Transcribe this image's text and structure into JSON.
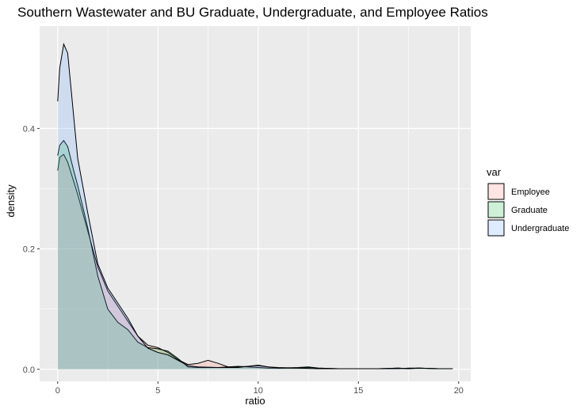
{
  "chart_data": {
    "type": "area",
    "title": "Southern Wastewater and BU Graduate, Undergraduate, and Employee Ratios",
    "xlabel": "ratio",
    "ylabel": "density",
    "xlim": [
      -0.9,
      20.6
    ],
    "ylim": [
      -0.02,
      0.57
    ],
    "x_ticks": [
      0,
      5,
      10,
      15,
      20
    ],
    "x_tick_labels": [
      "0",
      "5",
      "10",
      "15",
      "20"
    ],
    "y_ticks": [
      0.0,
      0.2,
      0.4
    ],
    "y_tick_labels": [
      "0.0",
      "0.2",
      "0.4"
    ],
    "grid": true,
    "legend": {
      "title": "var",
      "position": "right"
    },
    "series": [
      {
        "name": "Employee",
        "fill": "#f8766d",
        "points": [
          [
            0,
            0.33
          ],
          [
            0.1,
            0.352
          ],
          [
            0.3,
            0.357
          ],
          [
            0.5,
            0.344
          ],
          [
            0.8,
            0.312
          ],
          [
            1,
            0.29
          ],
          [
            1.5,
            0.23
          ],
          [
            2,
            0.17
          ],
          [
            2.5,
            0.13
          ],
          [
            3,
            0.105
          ],
          [
            3.5,
            0.08
          ],
          [
            4,
            0.055
          ],
          [
            4.5,
            0.04
          ],
          [
            5,
            0.036
          ],
          [
            5.5,
            0.028
          ],
          [
            6,
            0.016
          ],
          [
            6.5,
            0.008
          ],
          [
            7,
            0.01
          ],
          [
            7.5,
            0.015
          ],
          [
            8,
            0.01
          ],
          [
            8.5,
            0.004
          ],
          [
            9,
            0.004
          ],
          [
            9.5,
            0.005
          ],
          [
            10,
            0.006
          ],
          [
            10.5,
            0.004
          ],
          [
            11,
            0.003
          ],
          [
            12,
            0.002
          ],
          [
            12.6,
            0.003
          ],
          [
            13,
            0.002
          ],
          [
            14,
            0.001
          ],
          [
            15,
            0.001
          ],
          [
            16,
            0.001
          ],
          [
            17,
            0.002
          ],
          [
            17.5,
            0.001
          ],
          [
            18,
            0.002
          ],
          [
            19,
            0.001
          ],
          [
            19.7,
            0.001
          ]
        ]
      },
      {
        "name": "Graduate",
        "fill": "#00ba38",
        "points": [
          [
            0,
            0.355
          ],
          [
            0.1,
            0.372
          ],
          [
            0.3,
            0.38
          ],
          [
            0.5,
            0.37
          ],
          [
            0.8,
            0.33
          ],
          [
            1,
            0.305
          ],
          [
            1.5,
            0.235
          ],
          [
            2,
            0.155
          ],
          [
            2.5,
            0.1
          ],
          [
            3,
            0.078
          ],
          [
            3.5,
            0.066
          ],
          [
            4,
            0.045
          ],
          [
            4.5,
            0.036
          ],
          [
            5,
            0.034
          ],
          [
            5.5,
            0.03
          ],
          [
            6,
            0.018
          ],
          [
            6.5,
            0.004
          ],
          [
            7,
            0.003
          ],
          [
            8,
            0.003
          ],
          [
            8.5,
            0.004
          ],
          [
            9,
            0.005
          ],
          [
            9.5,
            0.004
          ],
          [
            10,
            0.003
          ],
          [
            10.5,
            0.002
          ],
          [
            11,
            0.002
          ],
          [
            12,
            0.003
          ],
          [
            12.5,
            0.004
          ],
          [
            13,
            0.002
          ],
          [
            14,
            0.001
          ],
          [
            15,
            0.001
          ],
          [
            16,
            0.001
          ],
          [
            17,
            0.001
          ],
          [
            17.5,
            0.002
          ],
          [
            18,
            0.002
          ],
          [
            19,
            0.001
          ],
          [
            19.7,
            0.001
          ]
        ]
      },
      {
        "name": "Undergraduate",
        "fill": "#619cff",
        "points": [
          [
            0,
            0.445
          ],
          [
            0.1,
            0.5
          ],
          [
            0.3,
            0.54
          ],
          [
            0.5,
            0.525
          ],
          [
            0.8,
            0.42
          ],
          [
            1,
            0.35
          ],
          [
            1.5,
            0.26
          ],
          [
            2,
            0.175
          ],
          [
            2.5,
            0.135
          ],
          [
            3,
            0.11
          ],
          [
            3.5,
            0.085
          ],
          [
            4,
            0.055
          ],
          [
            4.5,
            0.035
          ],
          [
            5,
            0.028
          ],
          [
            5.5,
            0.024
          ],
          [
            6,
            0.015
          ],
          [
            6.5,
            0.006
          ],
          [
            7,
            0.004
          ],
          [
            8,
            0.003
          ],
          [
            9,
            0.003
          ],
          [
            9.5,
            0.005
          ],
          [
            10,
            0.007
          ],
          [
            10.5,
            0.004
          ],
          [
            11,
            0.002
          ],
          [
            12,
            0.002
          ],
          [
            13,
            0.001
          ],
          [
            14,
            0.001
          ],
          [
            15,
            0.001
          ],
          [
            16,
            0.001
          ],
          [
            17,
            0.002
          ],
          [
            17.5,
            0.001
          ],
          [
            18,
            0.002
          ],
          [
            19,
            0.001
          ],
          [
            19.7,
            0.001
          ]
        ]
      }
    ]
  }
}
